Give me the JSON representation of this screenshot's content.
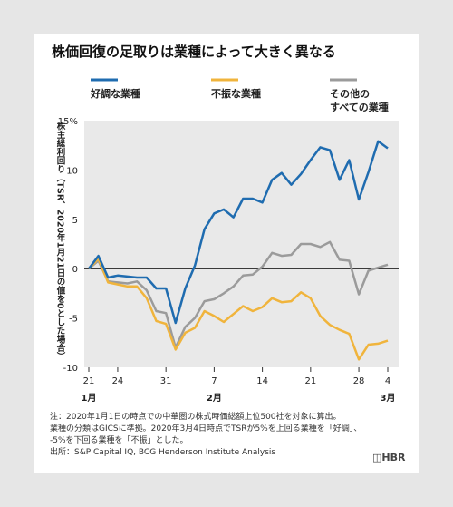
{
  "chart_data": {
    "type": "line",
    "title": "株価回復の足取りは業種によって大きく異なる",
    "y_label": "株主総利回り（TSR、2020年1月21日の値を0とした場合）",
    "categories": [
      "21",
      null,
      null,
      "24",
      null,
      null,
      null,
      null,
      "31",
      null,
      null,
      null,
      null,
      "7",
      null,
      null,
      null,
      null,
      "14",
      null,
      null,
      null,
      null,
      "21",
      null,
      null,
      null,
      null,
      "28",
      null,
      null,
      "4"
    ],
    "months": [
      {
        "index": 0,
        "label": "1月"
      },
      {
        "index": 13,
        "label": "2月"
      },
      {
        "index": 31,
        "label": "3月"
      }
    ],
    "series": [
      {
        "name": "好調な業種",
        "color": "#1f6cb0",
        "values": [
          0,
          1.3,
          -0.9,
          -0.7,
          -0.8,
          -0.9,
          -0.9,
          -2.0,
          -2.0,
          -5.5,
          -2.0,
          0.3,
          4.0,
          5.6,
          6.0,
          5.2,
          7.1,
          7.1,
          6.7,
          9.0,
          9.7,
          8.5,
          9.6,
          11.0,
          12.3,
          12.0,
          9.0,
          11.0,
          7.0,
          9.8,
          12.9,
          12.2
        ]
      },
      {
        "name": "不振な業種",
        "color": "#f0b43c",
        "values": [
          0,
          1.0,
          -1.4,
          -1.6,
          -1.8,
          -1.8,
          -3.0,
          -5.3,
          -5.6,
          -8.2,
          -6.5,
          -6.0,
          -4.3,
          -4.8,
          -5.4,
          -4.6,
          -3.8,
          -4.3,
          -3.9,
          -3.0,
          -3.4,
          -3.3,
          -2.4,
          -3.0,
          -4.8,
          -5.7,
          -6.2,
          -6.6,
          -9.2,
          -7.7,
          -7.6,
          -7.3
        ]
      },
      {
        "name": "その他の\nすべての業種",
        "color": "#9b9b9b",
        "values": [
          0,
          0.8,
          -1.3,
          -1.4,
          -1.5,
          -1.3,
          -2.2,
          -4.3,
          -4.5,
          -8.0,
          -5.9,
          -5.0,
          -3.3,
          -3.1,
          -2.5,
          -1.8,
          -0.7,
          -0.6,
          0.2,
          1.6,
          1.3,
          1.4,
          2.5,
          2.5,
          2.2,
          2.7,
          0.9,
          0.8,
          -2.6,
          -0.2,
          0.1,
          0.4
        ]
      }
    ],
    "ylim": [
      -10,
      15
    ],
    "yticks": [
      {
        "value": 15,
        "label": "15%"
      },
      10,
      5,
      0,
      -5,
      -10
    ],
    "notes": [
      "注：2020年1月1日の時点での中華圏の株式時価総額上位500社を対象に算出。",
      "業種の分類はGICSに準拠。2020年3月4日時点でTSRが5%を上回る業種を「好調」、",
      "-5%を下回る業種を「不振」とした。",
      "出所：S&P Capital IQ, BCG Henderson Institute Analysis"
    ],
    "brand": "HBR"
  }
}
